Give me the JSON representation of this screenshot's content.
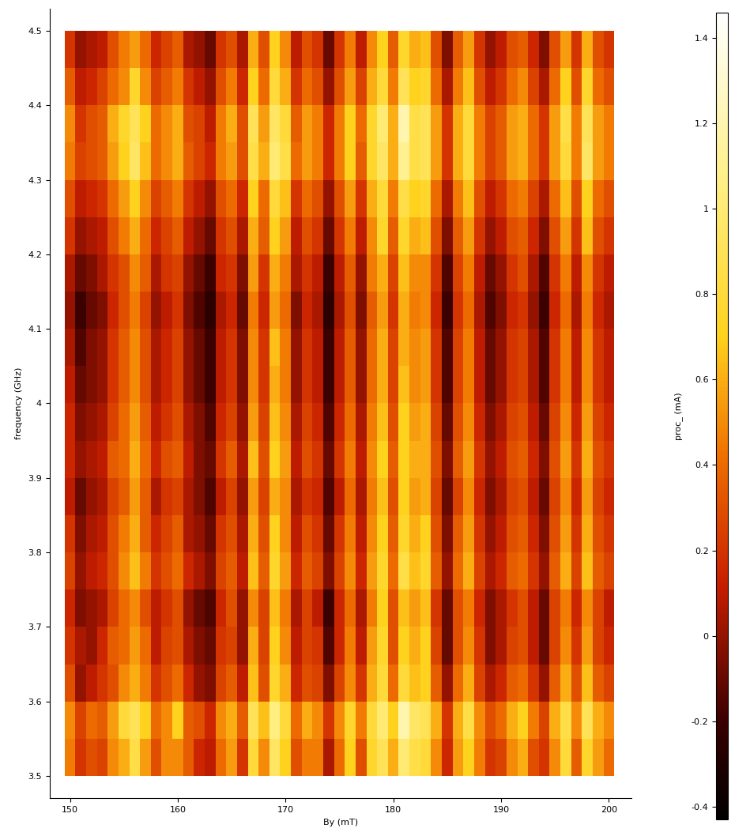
{
  "chart_data": {
    "type": "heatmap",
    "x_label": "By (mT)",
    "y_label": "frequency (GHz)",
    "colorbar_label": "proc_ (mA)",
    "x": [
      150,
      151,
      152,
      153,
      154,
      155,
      156,
      157,
      158,
      159,
      160,
      161,
      162,
      163,
      164,
      165,
      166,
      167,
      168,
      169,
      170,
      171,
      172,
      173,
      174,
      175,
      176,
      177,
      178,
      179,
      180,
      181,
      182,
      183,
      184,
      185,
      186,
      187,
      188,
      189,
      190,
      191,
      192,
      193,
      194,
      195,
      196,
      197,
      198,
      199,
      200
    ],
    "y": [
      3.525,
      3.575,
      3.625,
      3.675,
      3.725,
      3.775,
      3.825,
      3.875,
      3.925,
      3.975,
      4.025,
      4.075,
      4.125,
      4.175,
      4.225,
      4.275,
      4.325,
      4.375,
      4.425,
      4.475
    ],
    "xlim": [
      148.1,
      202.1
    ],
    "xticks": [
      150,
      160,
      170,
      180,
      190,
      200
    ],
    "ylim": [
      3.47,
      4.53
    ],
    "yticks": [
      3.5,
      3.6,
      3.7,
      3.8,
      3.9,
      4,
      4.1,
      4.2,
      4.3,
      4.4,
      4.5
    ],
    "color_range": [
      -0.43,
      1.46
    ],
    "color_ticks": [
      -0.4,
      -0.2,
      0,
      0.2,
      0.4,
      0.6,
      0.8,
      1,
      1.2,
      1.4
    ],
    "values": [
      [
        0.45,
        0.2,
        0.3,
        0.25,
        0.5,
        0.6,
        0.85,
        0.55,
        0.3,
        0.5,
        0.5,
        0.35,
        0.15,
        0.1,
        0.4,
        0.55,
        0.2,
        0.8,
        0.5,
        0.95,
        0.7,
        0.3,
        0.45,
        0.45,
        0.05,
        0.4,
        0.7,
        0.3,
        0.75,
        0.9,
        0.6,
        1.0,
        0.85,
        0.8,
        0.5,
        0.15,
        0.55,
        0.7,
        0.45,
        0.2,
        0.25,
        0.5,
        0.6,
        0.3,
        0.2,
        0.5,
        0.8,
        0.35,
        0.75,
        0.55,
        0.4
      ],
      [
        0.5,
        0.25,
        0.4,
        0.35,
        0.55,
        0.8,
        0.9,
        0.7,
        0.4,
        0.5,
        0.7,
        0.35,
        0.3,
        0.15,
        0.5,
        0.6,
        0.35,
        0.9,
        0.65,
        1.05,
        0.8,
        0.4,
        0.6,
        0.5,
        0.2,
        0.5,
        0.75,
        0.45,
        0.8,
        1.0,
        0.7,
        1.2,
        0.95,
        0.9,
        0.6,
        0.2,
        0.6,
        0.85,
        0.5,
        0.3,
        0.4,
        0.6,
        0.7,
        0.45,
        0.25,
        0.6,
        0.85,
        0.5,
        0.9,
        0.6,
        0.5
      ],
      [
        0.3,
        0.0,
        0.1,
        0.2,
        0.3,
        0.5,
        0.6,
        0.45,
        0.2,
        0.3,
        0.4,
        0.15,
        0.0,
        -0.05,
        0.25,
        0.35,
        0.1,
        0.65,
        0.3,
        0.75,
        0.6,
        0.15,
        0.3,
        0.25,
        -0.05,
        0.25,
        0.5,
        0.2,
        0.6,
        0.8,
        0.4,
        0.8,
        0.65,
        0.7,
        0.35,
        0.0,
        0.4,
        0.6,
        0.25,
        0.05,
        0.15,
        0.35,
        0.4,
        0.2,
        0.0,
        0.35,
        0.6,
        0.3,
        0.65,
        0.35,
        0.25
      ],
      [
        0.2,
        0.05,
        0.0,
        0.15,
        0.35,
        0.4,
        0.55,
        0.4,
        0.1,
        0.25,
        0.3,
        0.05,
        -0.05,
        -0.1,
        0.2,
        0.25,
        0.0,
        0.6,
        0.25,
        0.7,
        0.5,
        0.1,
        0.25,
        0.2,
        -0.15,
        0.15,
        0.45,
        0.1,
        0.55,
        0.75,
        0.3,
        0.7,
        0.6,
        0.7,
        0.25,
        -0.1,
        0.3,
        0.5,
        0.2,
        -0.05,
        0.05,
        0.25,
        0.3,
        0.1,
        -0.1,
        0.25,
        0.5,
        0.2,
        0.55,
        0.25,
        0.15
      ],
      [
        0.15,
        -0.05,
        0.0,
        0.05,
        0.25,
        0.4,
        0.5,
        0.3,
        0.1,
        0.2,
        0.3,
        0.0,
        -0.1,
        -0.15,
        0.15,
        0.3,
        0.0,
        0.5,
        0.25,
        0.65,
        0.45,
        0.05,
        0.25,
        0.1,
        -0.2,
        0.15,
        0.4,
        0.05,
        0.45,
        0.7,
        0.3,
        0.65,
        0.55,
        0.65,
        0.2,
        -0.1,
        0.3,
        0.45,
        0.15,
        -0.05,
        0.05,
        0.2,
        0.3,
        0.1,
        -0.1,
        0.25,
        0.45,
        0.15,
        0.5,
        0.25,
        0.1
      ],
      [
        0.25,
        0.0,
        0.1,
        0.15,
        0.3,
        0.5,
        0.65,
        0.45,
        0.2,
        0.3,
        0.4,
        0.15,
        0.05,
        -0.05,
        0.25,
        0.35,
        0.1,
        0.65,
        0.35,
        0.75,
        0.55,
        0.15,
        0.35,
        0.25,
        -0.05,
        0.25,
        0.5,
        0.15,
        0.55,
        0.75,
        0.4,
        0.85,
        0.65,
        0.75,
        0.35,
        0.0,
        0.4,
        0.6,
        0.25,
        0.05,
        0.15,
        0.35,
        0.4,
        0.2,
        0.0,
        0.35,
        0.6,
        0.25,
        0.65,
        0.35,
        0.25
      ],
      [
        0.2,
        -0.05,
        0.05,
        0.1,
        0.3,
        0.45,
        0.6,
        0.35,
        0.15,
        0.25,
        0.35,
        0.05,
        0.0,
        -0.1,
        0.2,
        0.3,
        0.05,
        0.6,
        0.3,
        0.7,
        0.5,
        0.1,
        0.3,
        0.2,
        -0.1,
        0.2,
        0.45,
        0.1,
        0.5,
        0.7,
        0.35,
        0.75,
        0.6,
        0.7,
        0.3,
        -0.05,
        0.35,
        0.55,
        0.2,
        0.0,
        0.1,
        0.3,
        0.35,
        0.15,
        -0.05,
        0.3,
        0.55,
        0.2,
        0.6,
        0.3,
        0.2
      ],
      [
        0.1,
        -0.1,
        0.0,
        0.05,
        0.25,
        0.35,
        0.55,
        0.35,
        0.05,
        0.2,
        0.25,
        0.05,
        -0.05,
        -0.15,
        0.1,
        0.25,
        0.0,
        0.55,
        0.25,
        0.6,
        0.5,
        0.05,
        0.2,
        0.15,
        -0.15,
        0.1,
        0.4,
        0.05,
        0.45,
        0.65,
        0.3,
        0.7,
        0.55,
        0.6,
        0.25,
        -0.1,
        0.25,
        0.5,
        0.15,
        -0.05,
        0.05,
        0.25,
        0.3,
        0.1,
        -0.1,
        0.25,
        0.5,
        0.15,
        0.55,
        0.25,
        0.15
      ],
      [
        0.15,
        0.0,
        0.05,
        0.1,
        0.35,
        0.4,
        0.6,
        0.4,
        0.15,
        0.3,
        0.35,
        0.1,
        -0.05,
        -0.1,
        0.2,
        0.35,
        0.05,
        0.65,
        0.3,
        0.7,
        0.55,
        0.1,
        0.3,
        0.2,
        -0.1,
        0.2,
        0.45,
        0.1,
        0.5,
        0.7,
        0.35,
        0.7,
        0.6,
        0.6,
        0.3,
        -0.05,
        0.35,
        0.55,
        0.2,
        0.0,
        0.1,
        0.3,
        0.35,
        0.15,
        -0.05,
        0.3,
        0.55,
        0.2,
        0.6,
        0.3,
        0.2
      ],
      [
        0.15,
        -0.05,
        0.0,
        0.05,
        0.25,
        0.4,
        0.55,
        0.35,
        0.1,
        0.2,
        0.3,
        0.05,
        -0.05,
        -0.15,
        0.15,
        0.25,
        0.0,
        0.55,
        0.25,
        0.65,
        0.5,
        0.05,
        0.25,
        0.15,
        -0.15,
        0.15,
        0.4,
        0.05,
        0.45,
        0.65,
        0.3,
        0.7,
        0.55,
        0.6,
        0.25,
        -0.1,
        0.3,
        0.5,
        0.15,
        -0.05,
        0.05,
        0.25,
        0.3,
        0.1,
        -0.1,
        0.25,
        0.5,
        0.15,
        0.55,
        0.25,
        0.15
      ],
      [
        0.1,
        -0.1,
        -0.05,
        0.0,
        0.2,
        0.35,
        0.5,
        0.3,
        0.05,
        0.15,
        0.25,
        0.0,
        -0.1,
        -0.2,
        0.1,
        0.2,
        -0.05,
        0.5,
        0.2,
        0.6,
        0.45,
        0.0,
        0.2,
        0.1,
        -0.2,
        0.1,
        0.35,
        0.0,
        0.4,
        0.6,
        0.25,
        0.65,
        0.5,
        0.55,
        0.2,
        -0.15,
        0.25,
        0.45,
        0.1,
        -0.1,
        0.0,
        0.2,
        0.25,
        0.05,
        -0.15,
        0.2,
        0.45,
        0.1,
        0.5,
        0.2,
        0.1
      ],
      [
        0.05,
        -0.15,
        -0.05,
        0.0,
        0.2,
        0.35,
        0.5,
        0.3,
        0.05,
        0.15,
        0.25,
        0.0,
        -0.1,
        -0.2,
        0.1,
        0.2,
        -0.05,
        0.5,
        0.2,
        0.65,
        0.45,
        0.0,
        0.2,
        0.1,
        -0.2,
        0.1,
        0.35,
        0.0,
        0.4,
        0.6,
        0.25,
        0.6,
        0.5,
        0.55,
        0.2,
        -0.15,
        0.25,
        0.45,
        0.1,
        -0.1,
        0.0,
        0.2,
        0.25,
        0.05,
        -0.15,
        0.2,
        0.45,
        0.1,
        0.5,
        0.2,
        0.1
      ],
      [
        0.0,
        -0.2,
        -0.1,
        -0.05,
        0.15,
        0.3,
        0.45,
        0.25,
        0.0,
        0.1,
        0.2,
        -0.05,
        -0.15,
        -0.25,
        0.05,
        0.15,
        -0.1,
        0.45,
        0.15,
        0.55,
        0.4,
        -0.05,
        0.15,
        0.05,
        -0.25,
        0.05,
        0.3,
        -0.05,
        0.35,
        0.55,
        0.2,
        0.6,
        0.45,
        0.5,
        0.15,
        -0.2,
        0.2,
        0.4,
        0.05,
        -0.15,
        -0.05,
        0.15,
        0.2,
        0.0,
        -0.2,
        0.15,
        0.4,
        0.05,
        0.45,
        0.15,
        0.05
      ],
      [
        0.05,
        -0.1,
        -0.05,
        0.05,
        0.2,
        0.3,
        0.5,
        0.35,
        0.05,
        0.2,
        0.25,
        0.0,
        -0.1,
        -0.2,
        0.15,
        0.2,
        -0.05,
        0.55,
        0.2,
        0.6,
        0.45,
        0.05,
        0.2,
        0.1,
        -0.2,
        0.1,
        0.35,
        0.0,
        0.45,
        0.6,
        0.25,
        0.65,
        0.5,
        0.5,
        0.2,
        -0.15,
        0.25,
        0.45,
        0.1,
        -0.1,
        0.0,
        0.2,
        0.3,
        0.05,
        -0.15,
        0.2,
        0.45,
        0.1,
        0.5,
        0.2,
        0.1
      ],
      [
        0.2,
        0.0,
        0.05,
        0.1,
        0.3,
        0.45,
        0.6,
        0.4,
        0.15,
        0.25,
        0.35,
        0.1,
        0.0,
        -0.1,
        0.2,
        0.3,
        0.05,
        0.6,
        0.35,
        0.7,
        0.55,
        0.1,
        0.3,
        0.2,
        -0.1,
        0.2,
        0.45,
        0.1,
        0.5,
        0.75,
        0.35,
        0.75,
        0.6,
        0.65,
        0.3,
        -0.05,
        0.35,
        0.55,
        0.2,
        0.0,
        0.1,
        0.3,
        0.35,
        0.15,
        -0.05,
        0.3,
        0.55,
        0.2,
        0.65,
        0.3,
        0.2
      ],
      [
        0.3,
        0.1,
        0.15,
        0.2,
        0.4,
        0.55,
        0.7,
        0.5,
        0.25,
        0.35,
        0.45,
        0.2,
        0.1,
        0.0,
        0.3,
        0.4,
        0.15,
        0.7,
        0.4,
        0.8,
        0.65,
        0.2,
        0.4,
        0.3,
        0.0,
        0.3,
        0.55,
        0.2,
        0.6,
        0.8,
        0.45,
        0.85,
        0.7,
        0.75,
        0.4,
        0.05,
        0.45,
        0.65,
        0.3,
        0.1,
        0.2,
        0.4,
        0.45,
        0.25,
        0.05,
        0.4,
        0.65,
        0.3,
        0.7,
        0.4,
        0.3
      ],
      [
        0.45,
        0.25,
        0.3,
        0.35,
        0.55,
        0.7,
        0.95,
        0.65,
        0.4,
        0.5,
        0.6,
        0.35,
        0.25,
        0.15,
        0.45,
        0.55,
        0.3,
        0.85,
        0.6,
        1.0,
        0.85,
        0.4,
        0.55,
        0.45,
        0.15,
        0.45,
        0.7,
        0.35,
        0.75,
        0.95,
        0.6,
        1.1,
        0.85,
        0.9,
        0.55,
        0.2,
        0.6,
        0.8,
        0.45,
        0.25,
        0.35,
        0.55,
        0.6,
        0.4,
        0.2,
        0.55,
        0.8,
        0.45,
        0.95,
        0.55,
        0.45
      ],
      [
        0.5,
        0.2,
        0.3,
        0.35,
        0.6,
        0.75,
        0.9,
        0.7,
        0.4,
        0.5,
        0.6,
        0.3,
        0.25,
        0.1,
        0.45,
        0.6,
        0.3,
        0.9,
        0.55,
        0.95,
        0.8,
        0.35,
        0.55,
        0.45,
        0.15,
        0.45,
        0.7,
        0.4,
        0.75,
        1.0,
        0.6,
        1.2,
        0.85,
        0.9,
        0.55,
        0.2,
        0.6,
        0.8,
        0.45,
        0.25,
        0.35,
        0.55,
        0.6,
        0.4,
        0.2,
        0.55,
        0.85,
        0.45,
        0.9,
        0.55,
        0.45
      ],
      [
        0.35,
        0.1,
        0.15,
        0.25,
        0.4,
        0.5,
        0.75,
        0.5,
        0.25,
        0.35,
        0.45,
        0.2,
        0.1,
        0.0,
        0.3,
        0.45,
        0.15,
        0.7,
        0.4,
        0.8,
        0.6,
        0.2,
        0.4,
        0.3,
        0.0,
        0.3,
        0.55,
        0.25,
        0.6,
        0.8,
        0.45,
        0.9,
        0.7,
        0.75,
        0.4,
        0.05,
        0.45,
        0.65,
        0.3,
        0.1,
        0.2,
        0.4,
        0.5,
        0.25,
        0.05,
        0.4,
        0.7,
        0.3,
        0.75,
        0.4,
        0.3
      ],
      [
        0.2,
        0.0,
        0.05,
        0.1,
        0.3,
        0.45,
        0.55,
        0.4,
        0.15,
        0.25,
        0.35,
        0.05,
        0.0,
        -0.1,
        0.2,
        0.3,
        0.05,
        0.6,
        0.3,
        0.7,
        0.5,
        0.1,
        0.3,
        0.2,
        -0.1,
        0.2,
        0.45,
        0.1,
        0.5,
        0.7,
        0.35,
        0.75,
        0.6,
        0.65,
        0.3,
        -0.05,
        0.35,
        0.55,
        0.2,
        0.0,
        0.1,
        0.3,
        0.35,
        0.15,
        -0.05,
        0.3,
        0.55,
        0.2,
        0.6,
        0.3,
        0.2
      ]
    ]
  }
}
